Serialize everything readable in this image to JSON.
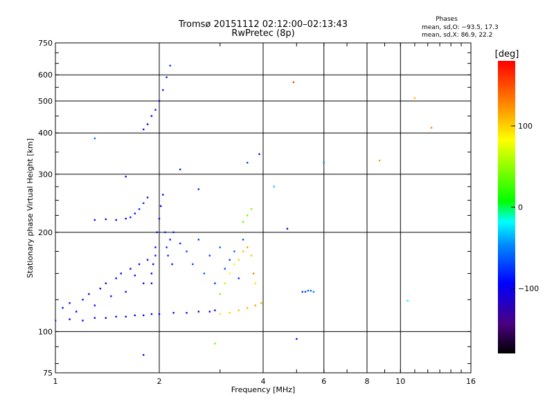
{
  "chart_data": {
    "type": "scatter",
    "title": "Tromsø 20151112 02:12:00–02:13:43",
    "subtitle": "RwPretec (8p)",
    "xlabel": "Frequency [MHz]",
    "ylabel": "Stationary phase Virtual Height [km]",
    "x_scale": "log",
    "y_scale": "log",
    "xlim": [
      1,
      16
    ],
    "ylim": [
      75,
      750
    ],
    "x_ticks": [
      1,
      2,
      4,
      6,
      8,
      10,
      16
    ],
    "x_tick_labels": [
      "1",
      "2",
      "4",
      "6",
      "8",
      "10",
      "16"
    ],
    "y_ticks": [
      75,
      100,
      200,
      300,
      400,
      500,
      600,
      750
    ],
    "y_tick_labels": [
      "75",
      "100",
      "200",
      "300",
      "400",
      "500",
      "600",
      "750"
    ],
    "grid": true,
    "phases_box": {
      "title": "Phases",
      "line1": "mean, sd,O: −93.5, 17.3",
      "line2": "mean, sd,X:  86.9, 22.2"
    },
    "colorbar": {
      "label": "[deg]",
      "range": [
        -180,
        180
      ],
      "ticks": [
        100,
        0,
        -100
      ],
      "tick_labels": [
        "100",
        "0",
        "−100"
      ]
    },
    "series": [
      {
        "role": "o-trace-low",
        "x": [
          1.0,
          1.1,
          1.2,
          1.3,
          1.4,
          1.5,
          1.6,
          1.7,
          1.8,
          1.9,
          2.0,
          2.2,
          2.4,
          2.6,
          2.8,
          2.9
        ],
        "y": [
          108,
          109,
          108,
          110,
          110,
          111,
          111,
          112,
          112,
          113,
          113,
          114,
          114,
          115,
          115,
          116
        ],
        "phase": [
          -95,
          -95,
          -95,
          -96,
          -95,
          -95,
          -94,
          -95,
          -95,
          -96,
          -95,
          -94,
          -95,
          -95,
          -96,
          -95
        ]
      },
      {
        "role": "x-trace-low",
        "x": [
          3.0,
          3.2,
          3.4,
          3.6,
          3.8,
          3.95
        ],
        "y": [
          113,
          114,
          116,
          118,
          120,
          122
        ],
        "phase": [
          95,
          100,
          105,
          110,
          120,
          115
        ]
      },
      {
        "role": "o-cloud-low",
        "x": [
          1.05,
          1.1,
          1.15,
          1.2,
          1.25,
          1.3,
          1.35,
          1.4,
          1.45,
          1.5,
          1.55,
          1.6,
          1.65,
          1.7,
          1.75,
          1.8,
          1.85,
          1.9,
          1.95
        ],
        "y": [
          118,
          122,
          115,
          125,
          130,
          120,
          135,
          140,
          128,
          145,
          150,
          132,
          155,
          148,
          160,
          140,
          165,
          150,
          170
        ],
        "phase": [
          -90,
          -95,
          -100,
          -92,
          -95,
          -98,
          -93,
          -95,
          -90,
          -96,
          -94,
          -95,
          -97,
          -92,
          -95,
          -99,
          -93,
          -95,
          -90
        ]
      },
      {
        "role": "o-branch-220",
        "x": [
          1.3,
          1.4,
          1.5,
          1.6,
          1.65,
          1.7,
          1.75,
          1.8,
          1.85
        ],
        "y": [
          218,
          219,
          218,
          220,
          222,
          228,
          235,
          245,
          255
        ],
        "phase": [
          -95,
          -93,
          -95,
          -94,
          -92,
          -90,
          -85,
          -80,
          -88
        ]
      },
      {
        "role": "o-column-2mhz",
        "x": [
          1.9,
          1.92,
          1.95,
          1.97,
          2.0,
          2.02,
          2.05,
          2.08,
          2.1,
          2.12,
          2.15,
          2.18
        ],
        "y": [
          140,
          160,
          180,
          200,
          220,
          240,
          260,
          200,
          180,
          170,
          190,
          160
        ],
        "phase": [
          -100,
          -95,
          -92,
          -90,
          -95,
          -98,
          -93,
          -85,
          -80,
          -82,
          -88,
          -90
        ]
      },
      {
        "role": "o-cloud-upper",
        "x": [
          2.2,
          2.3,
          2.4,
          2.5,
          2.6,
          2.7,
          2.8,
          2.9,
          3.0,
          3.1,
          3.2,
          3.3,
          3.4,
          3.5
        ],
        "y": [
          200,
          185,
          175,
          160,
          190,
          150,
          170,
          140,
          180,
          155,
          165,
          175,
          145,
          190
        ],
        "phase": [
          -85,
          -80,
          -75,
          -70,
          -78,
          -65,
          -72,
          -80,
          -60,
          -70,
          -75,
          -65,
          -80,
          -70
        ]
      },
      {
        "role": "x-cloud",
        "x": [
          3.0,
          3.1,
          3.2,
          3.3,
          3.4,
          3.5,
          3.6,
          3.7,
          3.75,
          3.8
        ],
        "y": [
          130,
          140,
          150,
          160,
          165,
          175,
          180,
          170,
          150,
          140
        ],
        "phase": [
          40,
          60,
          75,
          90,
          100,
          110,
          120,
          105,
          130,
          95
        ]
      },
      {
        "role": "x-branch-220",
        "x": [
          3.5,
          3.6,
          3.7
        ],
        "y": [
          215,
          225,
          235
        ],
        "phase": [
          35,
          40,
          45
        ]
      },
      {
        "role": "o-f-region",
        "x": [
          1.8,
          1.85,
          1.9,
          1.95,
          2.0,
          2.05,
          2.1,
          2.15
        ],
        "y": [
          410,
          425,
          450,
          470,
          500,
          540,
          590,
          640
        ],
        "phase": [
          -100,
          -98,
          -95,
          -92,
          -90,
          -88,
          -85,
          -80
        ]
      },
      {
        "role": "o-ext-cluster",
        "x": [
          5.2,
          5.3,
          5.4,
          5.5,
          5.6
        ],
        "y": [
          132,
          132,
          133,
          133,
          132
        ],
        "phase": [
          -75,
          -70,
          -65,
          -60,
          -50
        ]
      },
      {
        "role": "noise",
        "x": [
          1.3,
          1.6,
          2.3,
          2.6,
          3.6,
          3.9,
          4.3,
          4.7,
          5.0,
          6.0,
          8.7,
          11.0,
          12.3,
          2.9,
          1.8,
          10.5,
          4.9
        ],
        "y": [
          385,
          295,
          310,
          270,
          325,
          345,
          275,
          205,
          95,
          325,
          330,
          510,
          415,
          92,
          85,
          124,
          570
        ],
        "phase": [
          -60,
          -95,
          -85,
          -80,
          -70,
          -90,
          -30,
          -110,
          -100,
          -50,
          120,
          110,
          130,
          40,
          -100,
          -20,
          160
        ]
      }
    ]
  }
}
